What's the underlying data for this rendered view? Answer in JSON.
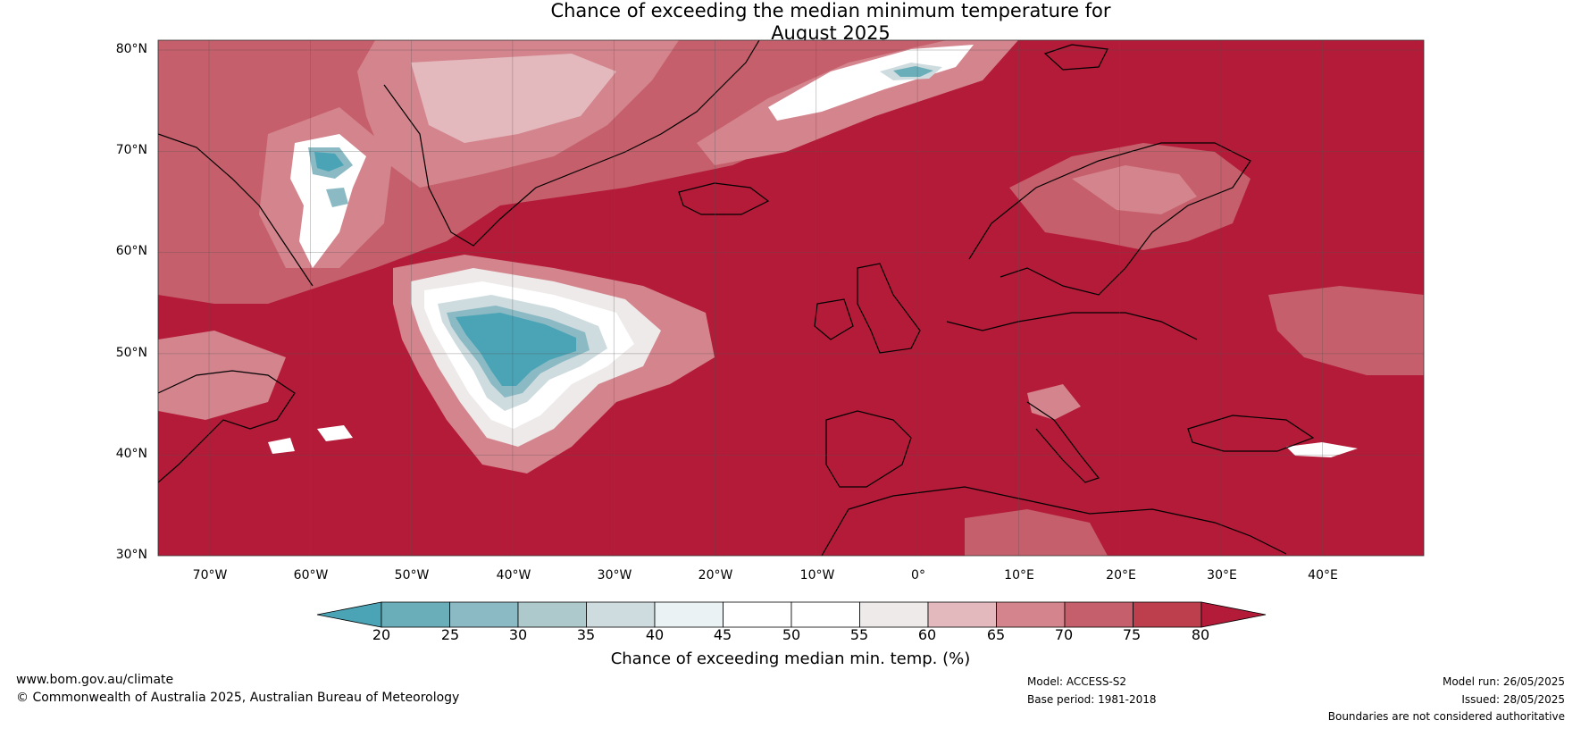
{
  "title": {
    "line1": "Chance of exceeding the median minimum temperature for",
    "line2": "August 2025"
  },
  "lat_labels": [
    "80°N",
    "70°N",
    "60°N",
    "50°N",
    "40°N",
    "30°N"
  ],
  "lon_labels": [
    "70°W",
    "60°W",
    "50°W",
    "40°W",
    "30°W",
    "20°W",
    "10°W",
    "0°",
    "10°E",
    "20°E",
    "30°E",
    "40°E"
  ],
  "colorbar": {
    "ticks": [
      "20",
      "25",
      "30",
      "35",
      "40",
      "45",
      "50",
      "55",
      "60",
      "65",
      "70",
      "75",
      "80"
    ],
    "title": "Chance of exceeding median min. temp. (%)",
    "colors": [
      "#4aa4b6",
      "#6aaeba",
      "#8bbac4",
      "#adc9cc",
      "#cfdcdf",
      "#eaf2f3",
      "#ffffff",
      "#ffffff",
      "#eeeaea",
      "#e3b9bd",
      "#d4848d",
      "#c55f6b",
      "#bd3f4e",
      "#b31b38"
    ]
  },
  "footer": {
    "website": "www.bom.gov.au/climate",
    "copyright": "© Commonwealth of Australia 2025, Australian Bureau of Meteorology",
    "model": "Model: ACCESS-S2",
    "base_period": "Base period: 1981-2018",
    "model_run": "Model run: 26/05/2025",
    "issued": "Issued: 28/05/2025",
    "disclaimer": "Boundaries are not considered authoritative"
  }
}
